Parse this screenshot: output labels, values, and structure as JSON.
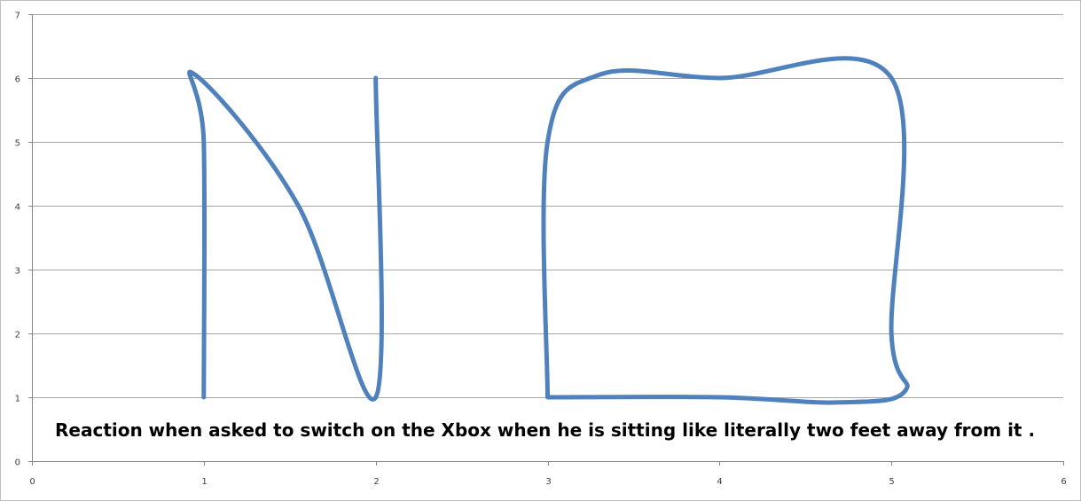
{
  "chart_data": {
    "type": "scatter",
    "title": "",
    "xlabel": "",
    "ylabel": "",
    "xlim": [
      0,
      6
    ],
    "ylim": [
      0,
      7
    ],
    "x_ticks": [
      0,
      1,
      2,
      3,
      4,
      5,
      6
    ],
    "y_ticks": [
      0,
      1,
      2,
      3,
      4,
      5,
      6,
      7
    ],
    "grid": "horizontal",
    "legend": "none",
    "annotation": "Reaction when asked to switch on the Xbox when he is sitting like literally two feet away from it .",
    "series": [
      {
        "color": "#4f81bd",
        "smooth": true,
        "points": [
          [
            1,
            1
          ],
          [
            1,
            5
          ],
          [
            0.95,
            6.05
          ],
          [
            1.55,
            4
          ],
          [
            2,
            1
          ],
          [
            2,
            6
          ]
        ]
      },
      {
        "color": "#4f81bd",
        "smooth": true,
        "points": [
          [
            3,
            1
          ],
          [
            3,
            5
          ],
          [
            3.3,
            6.05
          ],
          [
            4,
            6
          ],
          [
            5,
            6
          ],
          [
            5,
            2
          ],
          [
            5.08,
            1.1
          ],
          [
            4.7,
            0.92
          ],
          [
            4,
            1
          ],
          [
            3,
            1
          ]
        ]
      }
    ]
  }
}
